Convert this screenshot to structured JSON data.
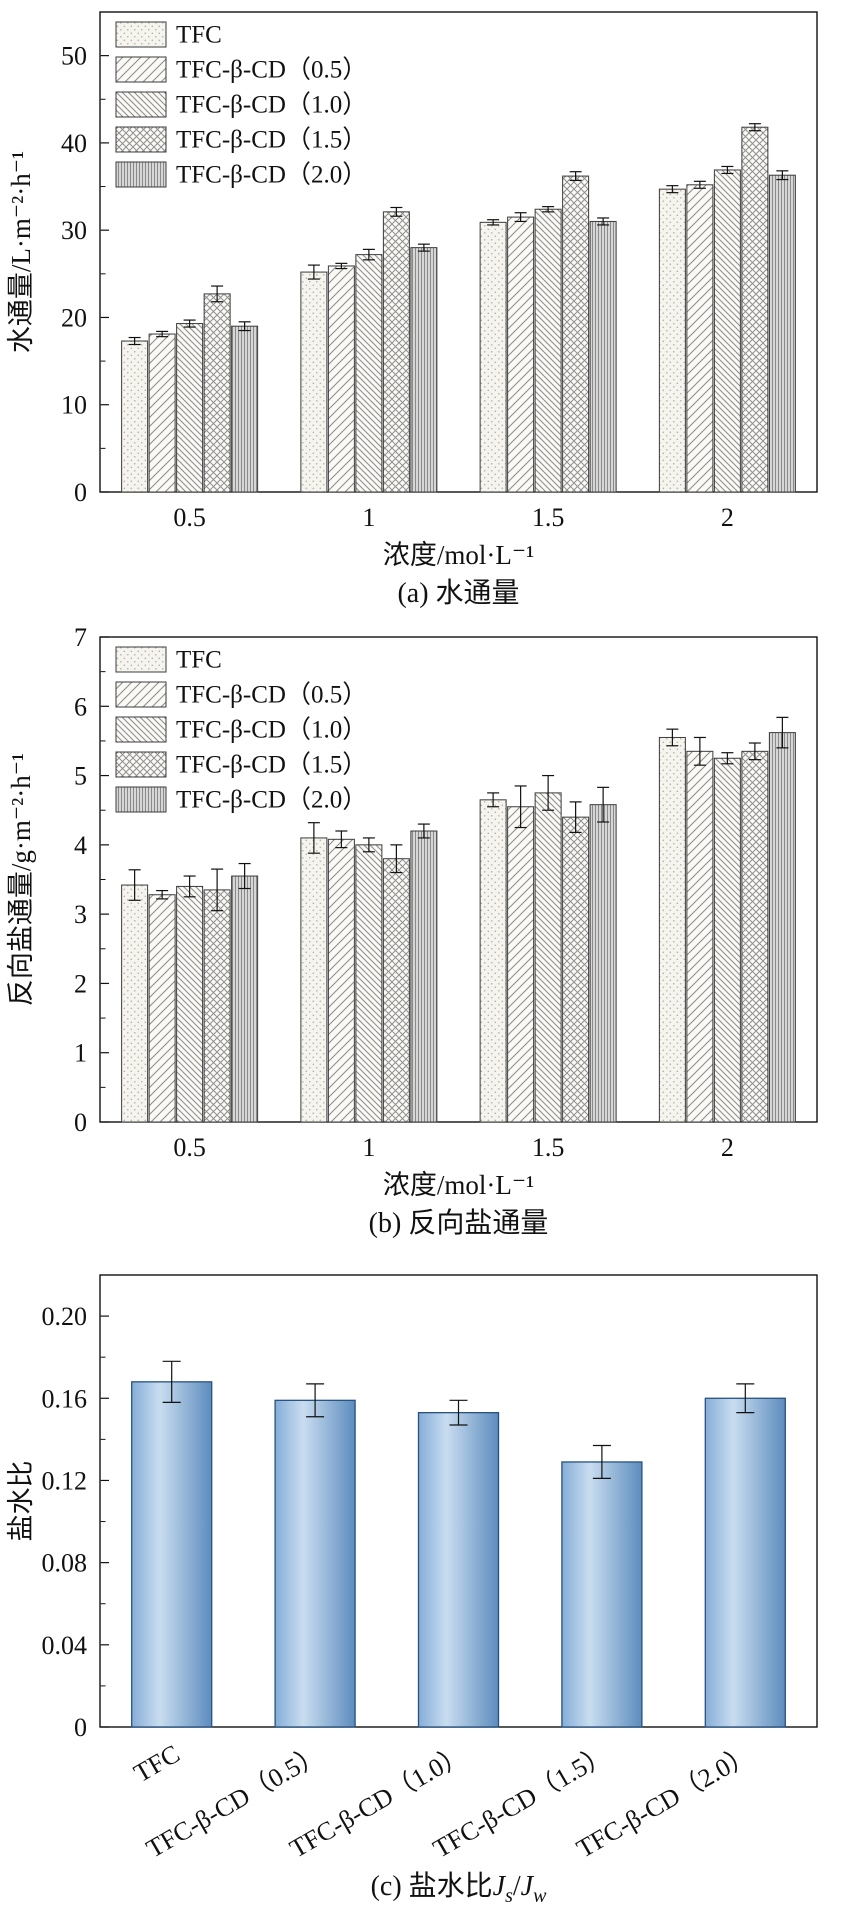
{
  "figure": {
    "background": "#ffffff",
    "axis_color": "#111111"
  },
  "chart_data": [
    {
      "id": "a",
      "type": "grouped_bar",
      "caption": [
        {
          "text": "(a) 水通量"
        }
      ],
      "ylabel": "水通量/L·m⁻²·h⁻¹",
      "xlabel": "浓度/mol·L⁻¹",
      "ylim": [
        0,
        55
      ],
      "yticks": [
        0,
        10,
        20,
        30,
        40,
        50
      ],
      "ytick_labels": [
        "0",
        "10",
        "20",
        "30",
        "40",
        "50"
      ],
      "yminor": 5,
      "legend_position": "top-left",
      "categories": [
        "0.5",
        "1",
        "1.5",
        "2"
      ],
      "series": [
        {
          "name": "TFC",
          "pattern": "dots",
          "values": [
            17.3,
            25.2,
            30.9,
            34.7
          ],
          "errors": [
            0.4,
            0.8,
            0.3,
            0.4
          ]
        },
        {
          "name": "TFC-β-CD（0.5）",
          "pattern": "diag-up",
          "values": [
            18.1,
            25.9,
            31.5,
            35.2
          ],
          "errors": [
            0.3,
            0.3,
            0.5,
            0.4
          ]
        },
        {
          "name": "TFC-β-CD（1.0）",
          "pattern": "diag-down",
          "values": [
            19.3,
            27.2,
            32.4,
            36.9
          ],
          "errors": [
            0.4,
            0.6,
            0.3,
            0.4
          ]
        },
        {
          "name": "TFC-β-CD（1.5）",
          "pattern": "cross",
          "values": [
            22.7,
            32.1,
            36.2,
            41.8
          ],
          "errors": [
            0.9,
            0.5,
            0.5,
            0.4
          ]
        },
        {
          "name": "TFC-β-CD（2.0）",
          "pattern": "vert",
          "values": [
            19.0,
            28.0,
            31.0,
            36.3
          ],
          "errors": [
            0.5,
            0.4,
            0.4,
            0.5
          ]
        }
      ]
    },
    {
      "id": "b",
      "type": "grouped_bar",
      "caption": [
        {
          "text": "(b) 反向盐通量"
        }
      ],
      "ylabel": "反向盐通量/g·m⁻²·h⁻¹",
      "xlabel": "浓度/mol·L⁻¹",
      "ylim": [
        0,
        7
      ],
      "yticks": [
        0,
        1,
        2,
        3,
        4,
        5,
        6,
        7
      ],
      "ytick_labels": [
        "0",
        "1",
        "2",
        "3",
        "4",
        "5",
        "6",
        "7"
      ],
      "yminor": 0.5,
      "legend_position": "top-left",
      "categories": [
        "0.5",
        "1",
        "1.5",
        "2"
      ],
      "series": [
        {
          "name": "TFC",
          "pattern": "dots",
          "values": [
            3.42,
            4.1,
            4.65,
            5.55
          ],
          "errors": [
            0.22,
            0.22,
            0.1,
            0.12
          ]
        },
        {
          "name": "TFC-β-CD（0.5）",
          "pattern": "diag-up",
          "values": [
            3.28,
            4.08,
            4.55,
            5.35
          ],
          "errors": [
            0.06,
            0.12,
            0.3,
            0.2
          ]
        },
        {
          "name": "TFC-β-CD（1.0）",
          "pattern": "diag-down",
          "values": [
            3.4,
            4.0,
            4.75,
            5.25
          ],
          "errors": [
            0.15,
            0.1,
            0.25,
            0.08
          ]
        },
        {
          "name": "TFC-β-CD（1.5）",
          "pattern": "cross",
          "values": [
            3.35,
            3.8,
            4.4,
            5.35
          ],
          "errors": [
            0.3,
            0.2,
            0.22,
            0.12
          ]
        },
        {
          "name": "TFC-β-CD（2.0）",
          "pattern": "vert",
          "values": [
            3.55,
            4.2,
            4.58,
            5.62
          ],
          "errors": [
            0.18,
            0.1,
            0.25,
            0.22
          ]
        }
      ]
    },
    {
      "id": "c",
      "type": "bar",
      "caption": [
        {
          "text": "(c) 盐水比"
        },
        {
          "text": "J",
          "italic": true
        },
        {
          "text": "s",
          "sub": true,
          "italic": true
        },
        {
          "text": "/"
        },
        {
          "text": "J",
          "italic": true
        },
        {
          "text": "w",
          "sub": true,
          "italic": true
        }
      ],
      "ylabel": "盐水比",
      "xlabel": "",
      "ylim": [
        0,
        0.22
      ],
      "yticks": [
        0,
        0.04,
        0.08,
        0.12,
        0.16,
        0.2
      ],
      "ytick_labels": [
        "0",
        "0.04",
        "0.08",
        "0.12",
        "0.16",
        "0.20"
      ],
      "yminor": 0.02,
      "categories": [
        "TFC",
        "TFC-β-CD（0.5）",
        "TFC-β-CD（1.0）",
        "TFC-β-CD（1.5）",
        "TFC-β-CD（2.0）"
      ],
      "values": [
        0.168,
        0.159,
        0.153,
        0.129,
        0.16
      ],
      "errors": [
        0.01,
        0.008,
        0.006,
        0.008,
        0.007
      ],
      "bar_gradient": [
        "#86add8",
        "#c9ddf0",
        "#5d8cbe"
      ],
      "bar_border": "#27527f"
    }
  ]
}
